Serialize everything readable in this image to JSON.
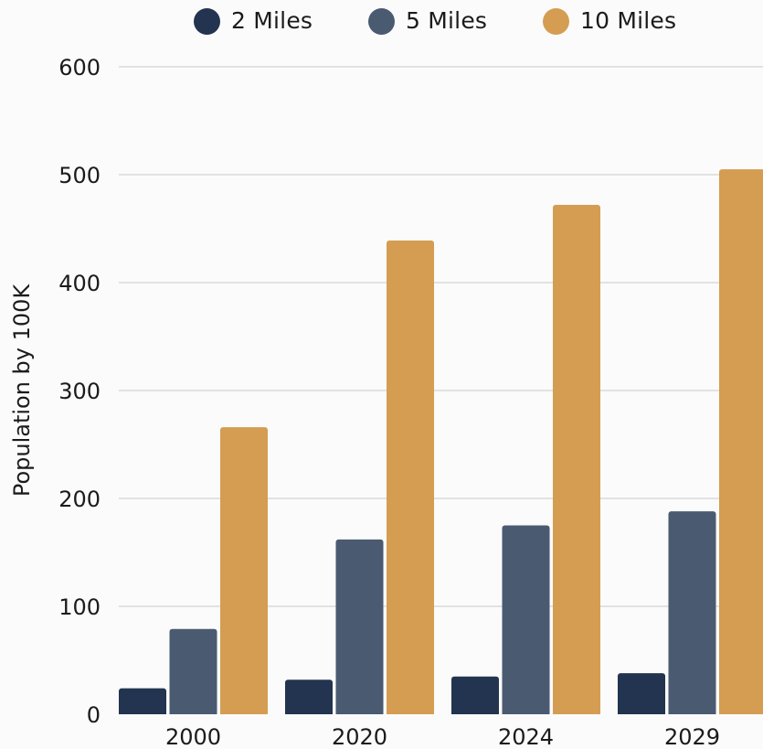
{
  "chart_data": {
    "type": "bar",
    "categories": [
      "2000",
      "2020",
      "2024",
      "2029"
    ],
    "series": [
      {
        "name": "2 Miles",
        "color": "#22344f",
        "values": [
          24,
          32,
          35,
          38
        ]
      },
      {
        "name": "5 Miles",
        "color": "#4a5a71",
        "values": [
          79,
          162,
          175,
          188
        ]
      },
      {
        "name": "10 Miles",
        "color": "#d49d52",
        "values": [
          266,
          439,
          472,
          505
        ]
      }
    ],
    "title": "",
    "xlabel": "",
    "ylabel": "Population by 100K",
    "ylim": [
      0,
      600
    ],
    "yticks": [
      "0",
      "100",
      "200",
      "300",
      "400",
      "500",
      "600"
    ],
    "grid": true,
    "legend_position": "top",
    "colors": {
      "background": "#fbfbfb",
      "grid": "#c9c9c9",
      "text": "#1b1b1b"
    }
  }
}
